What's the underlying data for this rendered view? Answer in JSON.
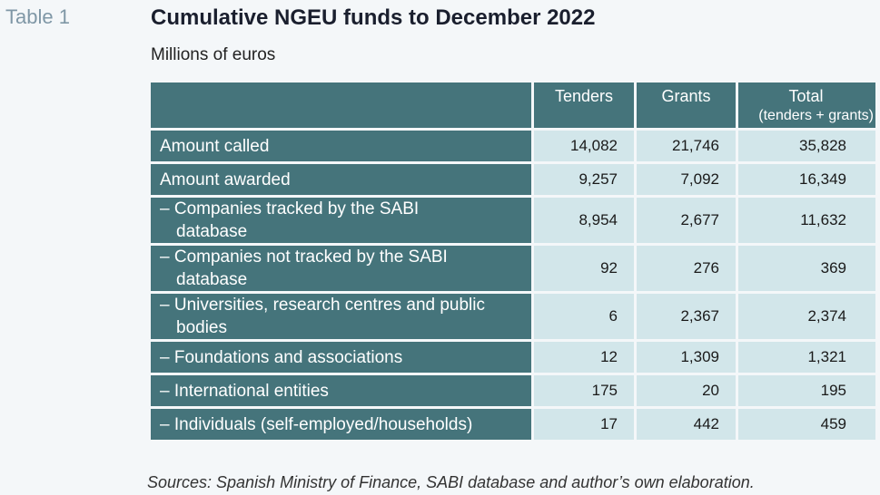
{
  "table_label": "Table 1",
  "title": "Cumulative NGEU funds to December 2022",
  "subtitle": "Millions of euros",
  "columns": {
    "tenders": "Tenders",
    "grants": "Grants",
    "total_line1": "Total",
    "total_line2": "(tenders + grants)"
  },
  "rows": [
    {
      "label1": "Amount called",
      "label2": "",
      "tenders": "14,082",
      "grants": "21,746",
      "total": "35,828"
    },
    {
      "label1": "Amount awarded",
      "label2": "",
      "tenders": "9,257",
      "grants": "7,092",
      "total": "16,349"
    },
    {
      "label1": "– Companies tracked by the SABI",
      "label2": "database",
      "tenders": "8,954",
      "grants": "2,677",
      "total": "11,632"
    },
    {
      "label1": "– Companies not tracked by the SABI",
      "label2": "database",
      "tenders": "92",
      "grants": "276",
      "total": "369"
    },
    {
      "label1": "– Universities, research centres and public",
      "label2": "bodies",
      "tenders": "6",
      "grants": "2,367",
      "total": "2,374"
    },
    {
      "label1": "– Foundations and associations",
      "label2": "",
      "tenders": "12",
      "grants": "1,309",
      "total": "1,321"
    },
    {
      "label1": "– International entities",
      "label2": "",
      "tenders": "175",
      "grants": "20",
      "total": "195"
    },
    {
      "label1": "– Individuals (self-employed/households)",
      "label2": "",
      "tenders": "17",
      "grants": "442",
      "total": "459"
    }
  ],
  "sources": "Sources: Spanish Ministry of Finance, SABI database and author’s own elaboration."
}
